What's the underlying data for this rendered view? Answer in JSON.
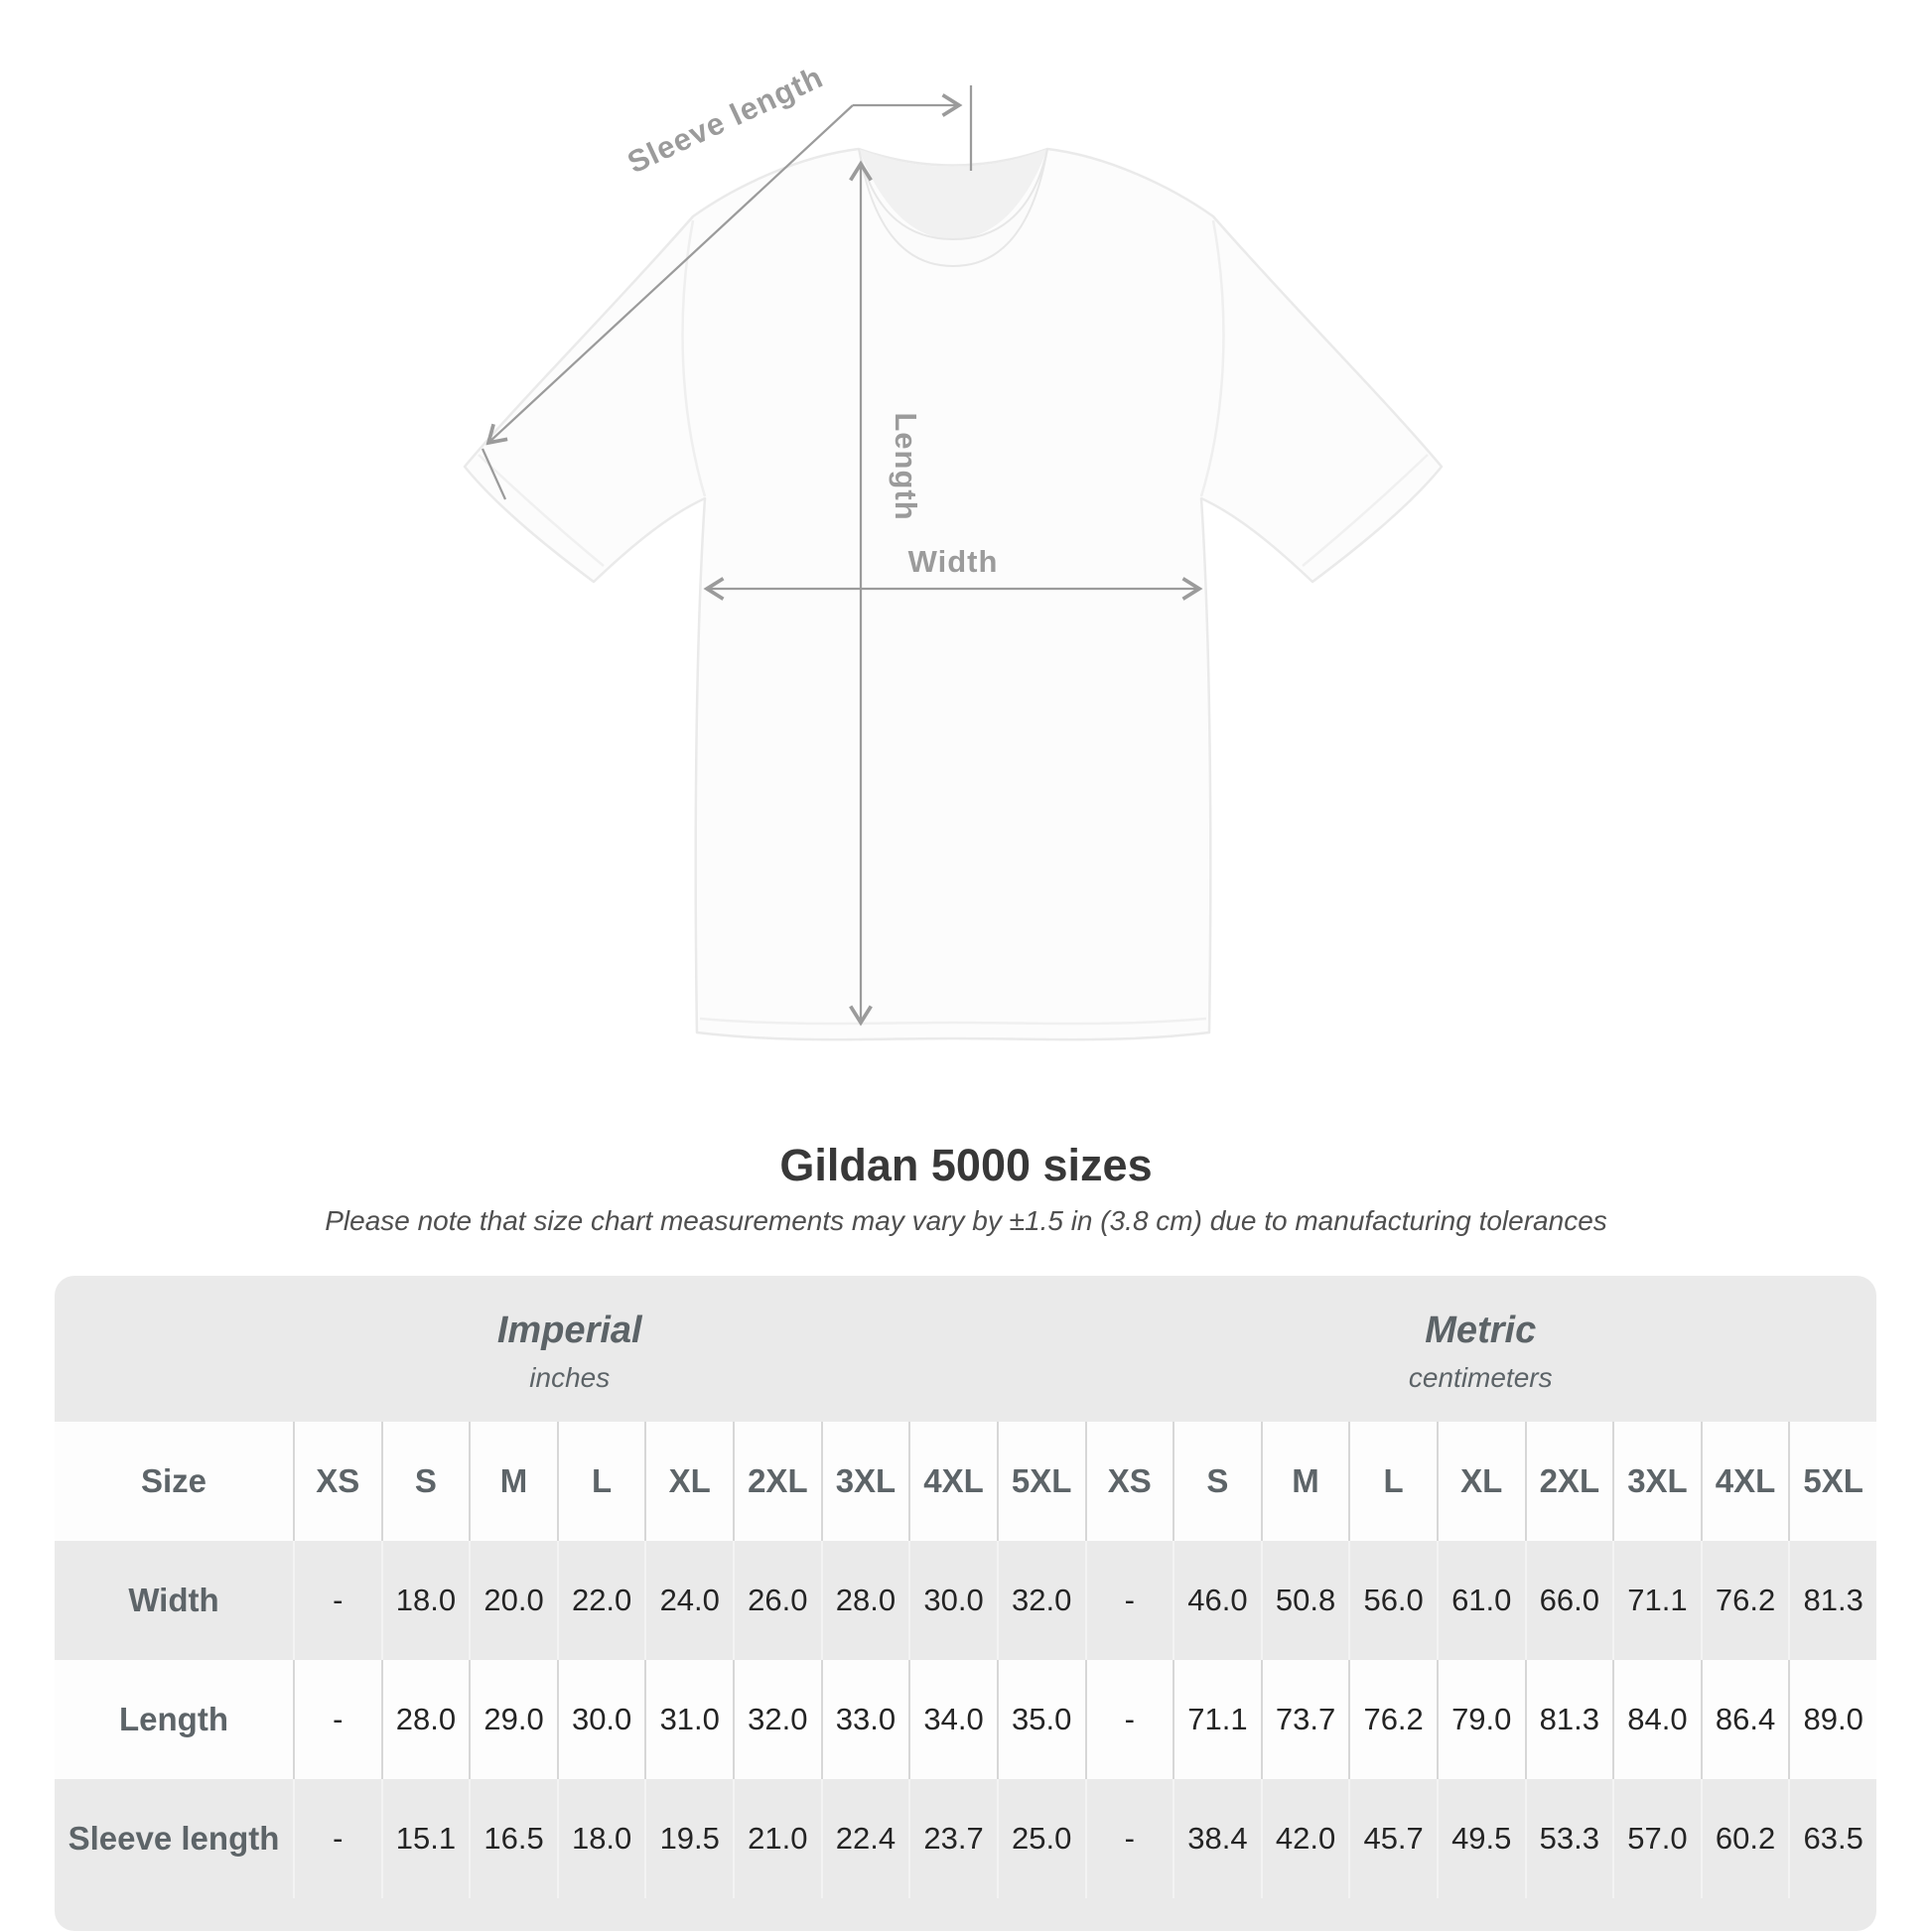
{
  "diagram": {
    "labels": {
      "sleeve_length": "Sleeve length",
      "length": "Length",
      "width": "Width"
    }
  },
  "title": "Gildan 5000 sizes",
  "subtitle": "Please note that size chart measurements may vary by ±1.5 in (3.8 cm) due to manufacturing tolerances",
  "table": {
    "size_header": "Size",
    "unit_groups": [
      {
        "label": "Imperial",
        "sublabel": "inches"
      },
      {
        "label": "Metric",
        "sublabel": "centimeters"
      }
    ],
    "sizes": [
      "XS",
      "S",
      "M",
      "L",
      "XL",
      "2XL",
      "3XL",
      "4XL",
      "5XL"
    ],
    "rows": [
      {
        "label": "Width",
        "imperial": [
          "-",
          "18.0",
          "20.0",
          "22.0",
          "24.0",
          "26.0",
          "28.0",
          "30.0",
          "32.0"
        ],
        "metric": [
          "-",
          "46.0",
          "50.8",
          "56.0",
          "61.0",
          "66.0",
          "71.1",
          "76.2",
          "81.3"
        ]
      },
      {
        "label": "Length",
        "imperial": [
          "-",
          "28.0",
          "29.0",
          "30.0",
          "31.0",
          "32.0",
          "33.0",
          "34.0",
          "35.0"
        ],
        "metric": [
          "-",
          "71.1",
          "73.7",
          "76.2",
          "79.0",
          "81.3",
          "84.0",
          "86.4",
          "89.0"
        ]
      },
      {
        "label": "Sleeve length",
        "imperial": [
          "-",
          "15.1",
          "16.5",
          "18.0",
          "19.5",
          "21.0",
          "22.4",
          "23.7",
          "25.0"
        ],
        "metric": [
          "-",
          "38.4",
          "42.0",
          "45.7",
          "49.5",
          "53.3",
          "57.0",
          "60.2",
          "63.5"
        ]
      }
    ]
  },
  "chart_data": {
    "type": "table",
    "title": "Gildan 5000 sizes",
    "note": "Please note that size chart measurements may vary by ±1.5 in (3.8 cm) due to manufacturing tolerances",
    "size_columns": [
      "XS",
      "S",
      "M",
      "L",
      "XL",
      "2XL",
      "3XL",
      "4XL",
      "5XL"
    ],
    "units": [
      "inches",
      "centimeters"
    ],
    "rows": [
      {
        "measurement": "Width",
        "imperial_inches": [
          null,
          18.0,
          20.0,
          22.0,
          24.0,
          26.0,
          28.0,
          30.0,
          32.0
        ],
        "metric_centimeters": [
          null,
          46.0,
          50.8,
          56.0,
          61.0,
          66.0,
          71.1,
          76.2,
          81.3
        ]
      },
      {
        "measurement": "Length",
        "imperial_inches": [
          null,
          28.0,
          29.0,
          30.0,
          31.0,
          32.0,
          33.0,
          34.0,
          35.0
        ],
        "metric_centimeters": [
          null,
          71.1,
          73.7,
          76.2,
          79.0,
          81.3,
          84.0,
          86.4,
          89.0
        ]
      },
      {
        "measurement": "Sleeve length",
        "imperial_inches": [
          null,
          15.1,
          16.5,
          18.0,
          19.5,
          21.0,
          22.4,
          23.7,
          25.0
        ],
        "metric_centimeters": [
          null,
          38.4,
          42.0,
          45.7,
          49.5,
          53.3,
          57.0,
          60.2,
          63.5
        ]
      }
    ],
    "colors": {
      "annotation_gray": "#9b9b9b",
      "table_band_gray": "#eaeaea",
      "row_white": "#fdfdfd",
      "header_text": "#5d6468",
      "value_text": "#242424"
    }
  }
}
